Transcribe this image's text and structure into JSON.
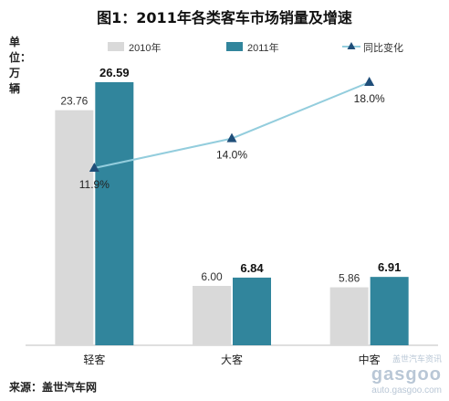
{
  "title": "图1：2011年各类客车市场销量及增速",
  "unit_label": "单位：万辆",
  "source": "来源：盖世汽车网",
  "watermark": {
    "line1": "盖世汽车资讯",
    "line2": "gasgoo",
    "line3": "auto.gasgoo.com"
  },
  "chart_data": {
    "type": "bar",
    "categories": [
      "轻客",
      "大客",
      "中客"
    ],
    "series": [
      {
        "name": "2010年",
        "kind": "bar",
        "values": [
          23.76,
          6.0,
          5.86
        ],
        "labels": [
          "23.76",
          "6.00",
          "5.86"
        ],
        "color": "#d9d9d9"
      },
      {
        "name": "2011年",
        "kind": "bar",
        "values": [
          26.59,
          6.84,
          6.91
        ],
        "labels": [
          "26.59",
          "6.84",
          "6.91"
        ],
        "color": "#31859c"
      },
      {
        "name": "同比变化",
        "kind": "line",
        "values": [
          11.9,
          14.0,
          18.0
        ],
        "labels": [
          "11.9%",
          "14.0%",
          "18.0%"
        ],
        "color": "#93cddd",
        "marker_color": "#1f4e79"
      }
    ],
    "legend_position": "top",
    "grid": false
  }
}
